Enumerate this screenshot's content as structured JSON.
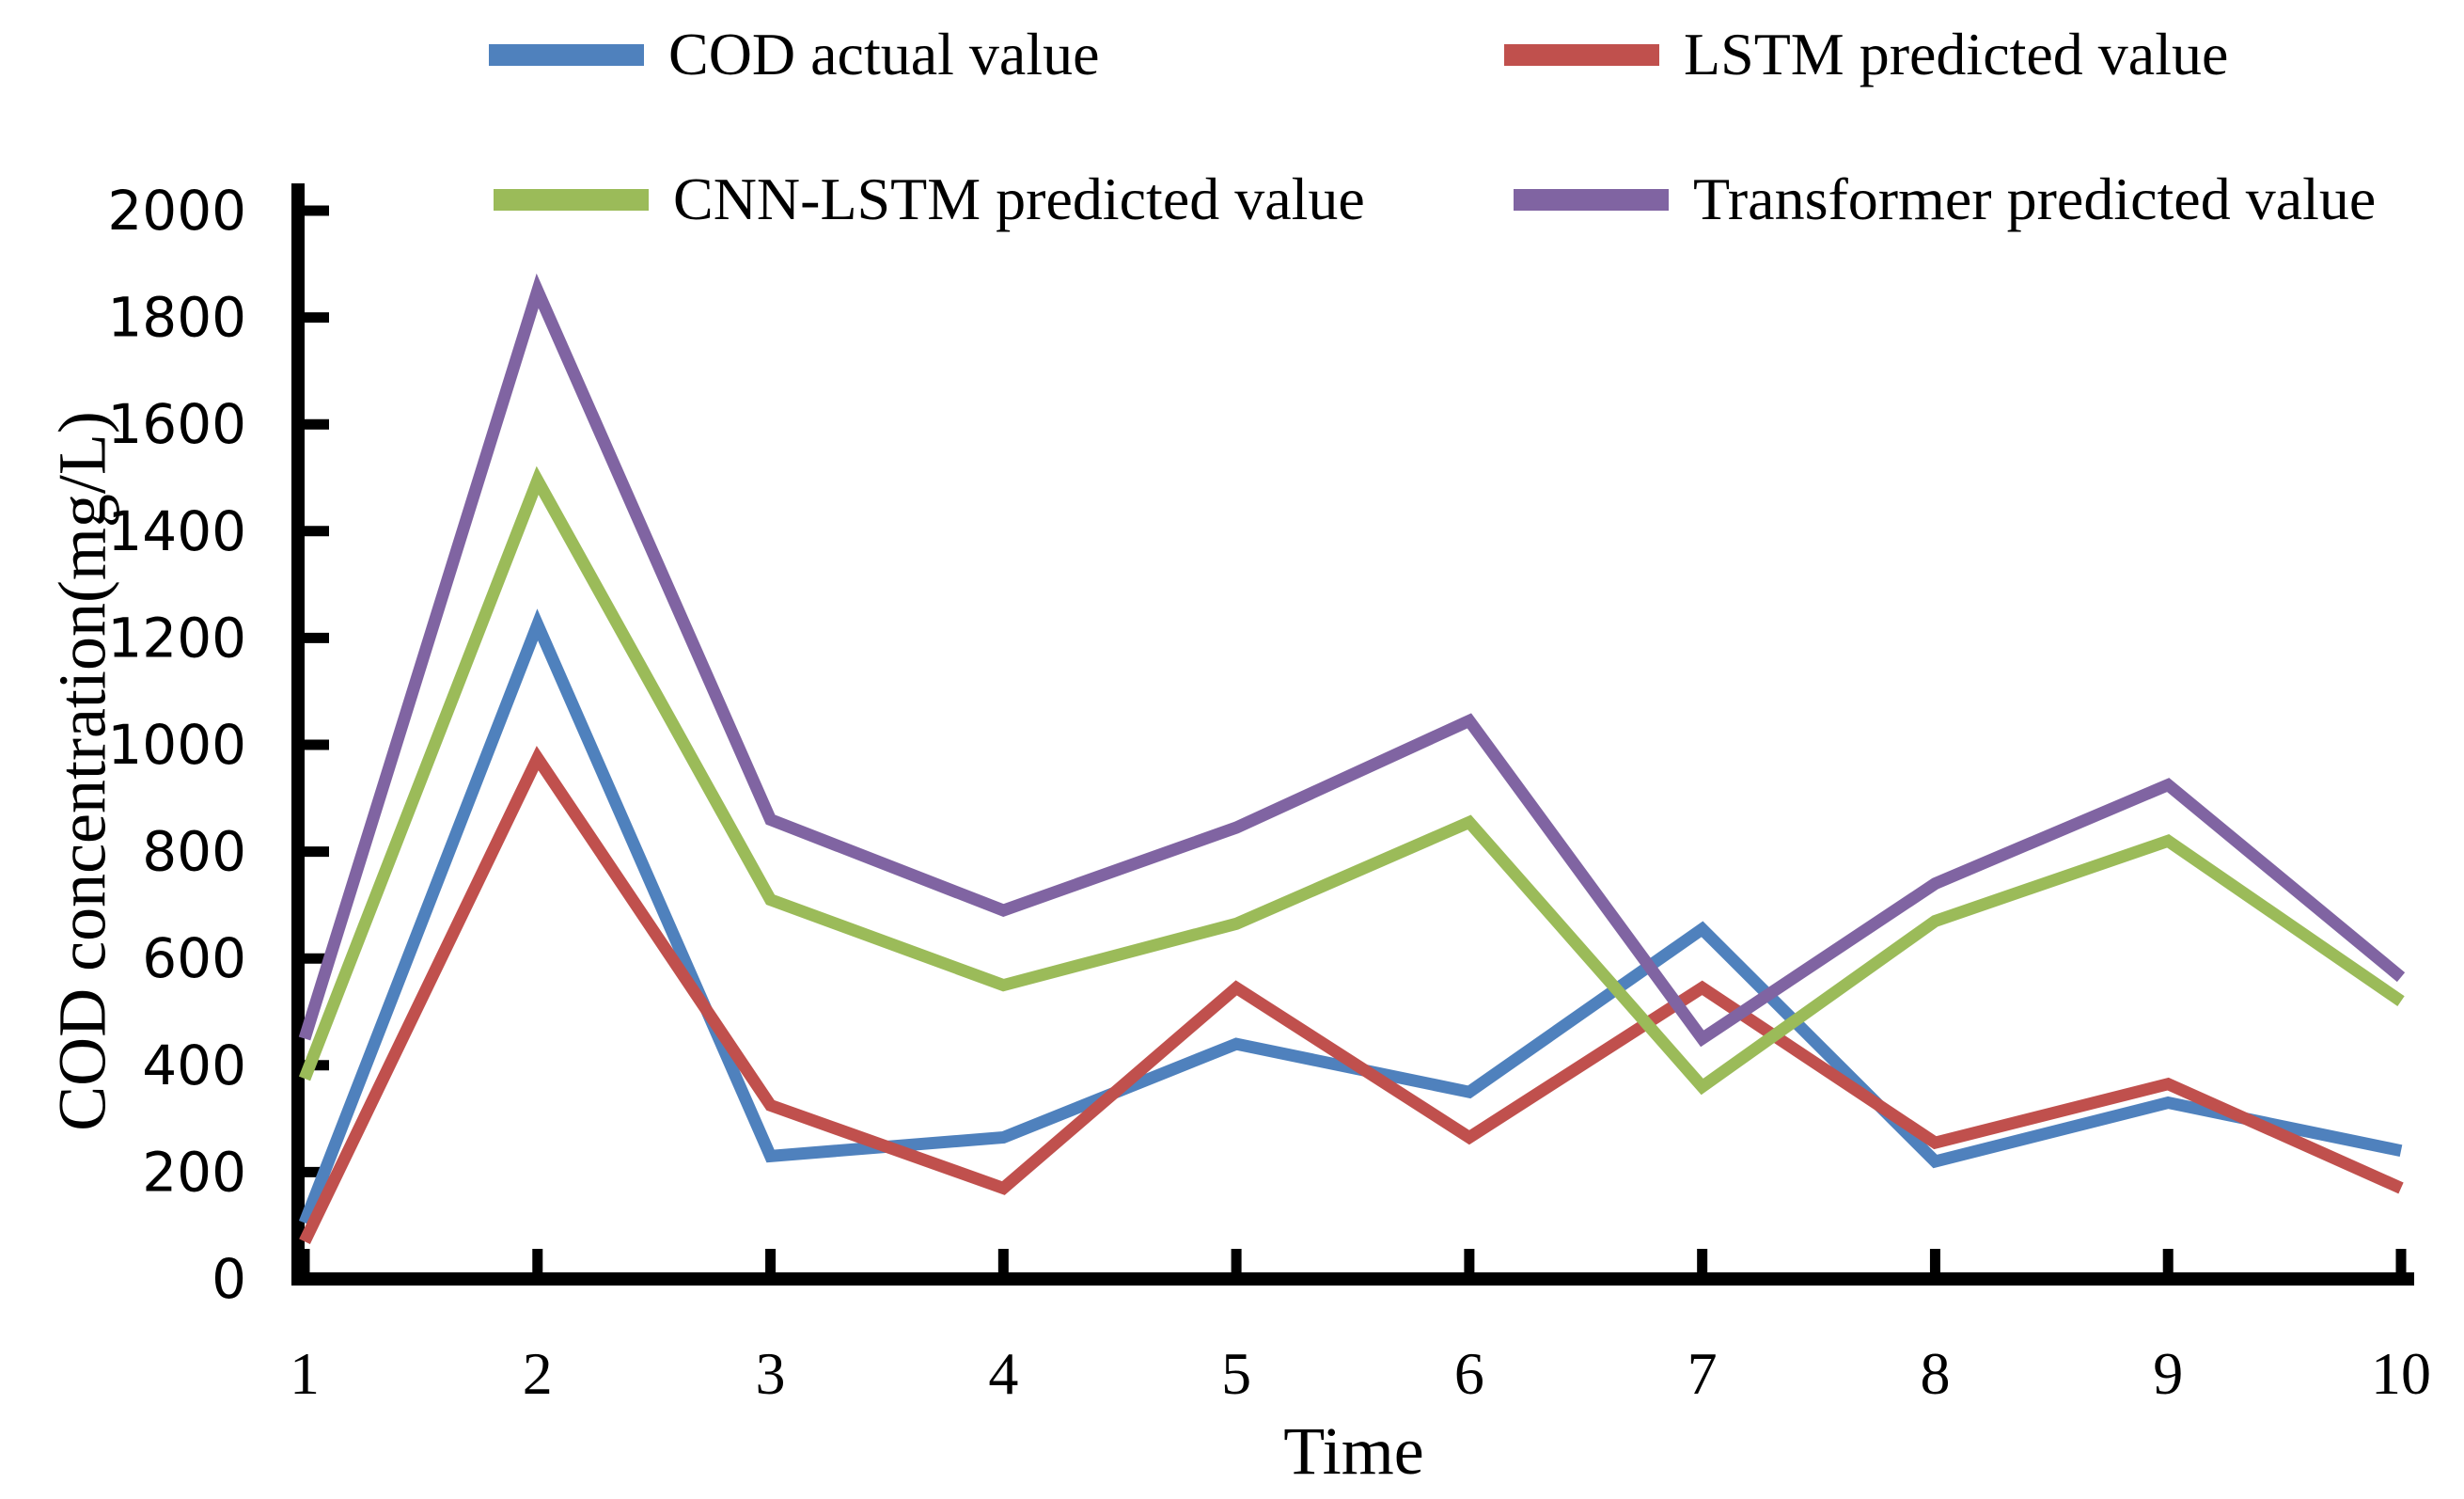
{
  "chart_data": {
    "type": "line",
    "title": "",
    "xlabel": "Time",
    "ylabel": "COD concentration(mg/L)",
    "x": [
      1,
      2,
      3,
      4,
      5,
      6,
      7,
      8,
      9,
      10
    ],
    "ylim": [
      0,
      2000
    ],
    "y_ticks": [
      0,
      200,
      400,
      600,
      800,
      1000,
      1200,
      1400,
      1600,
      1800,
      2000
    ],
    "grid": false,
    "legend_position": "top",
    "axis_color": "#000000",
    "background_color": "#ffffff",
    "series": [
      {
        "name": "COD actual value",
        "color": "#4F81BD",
        "values": [
          105,
          1225,
          230,
          265,
          440,
          350,
          655,
          220,
          330,
          240
        ]
      },
      {
        "name": "LSTM predicted value",
        "color": "#C0504D",
        "values": [
          70,
          975,
          325,
          170,
          545,
          265,
          545,
          255,
          365,
          170
        ]
      },
      {
        "name": "CNN-LSTM predicted value",
        "color": "#9BBB59",
        "values": [
          375,
          1495,
          710,
          550,
          665,
          855,
          360,
          670,
          820,
          520
        ]
      },
      {
        "name": "Transformer predicted value",
        "color": "#8064A2",
        "values": [
          450,
          1850,
          860,
          690,
          845,
          1045,
          450,
          740,
          925,
          565
        ]
      }
    ]
  }
}
